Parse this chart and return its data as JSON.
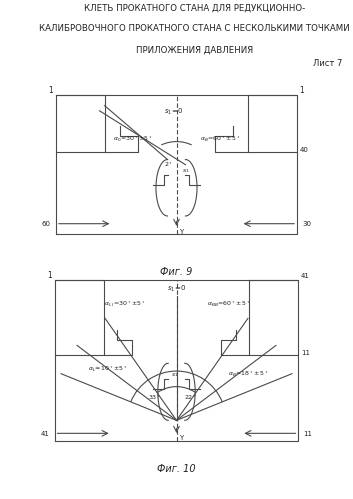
{
  "title_line1": "КЛЕТЬ ПРОКАТНОГО СТАНА ДЛЯ РЕДУКЦИОННО-",
  "title_line2": "КАЛИБРОВОЧНОГО ПРОКАТНОГО СТАНА С НЕСКОЛЬКИМИ ТОЧКАМИ",
  "title_line3": "ПРИЛОЖЕНИЯ ДАВЛЕНИЯ",
  "sheet": "Лист 7",
  "fig9_caption": "Фиг. 9",
  "fig10_caption": "Фиг. 10",
  "bg_color": "#ffffff",
  "line_color": "#4a4a4a",
  "text_color": "#222222"
}
